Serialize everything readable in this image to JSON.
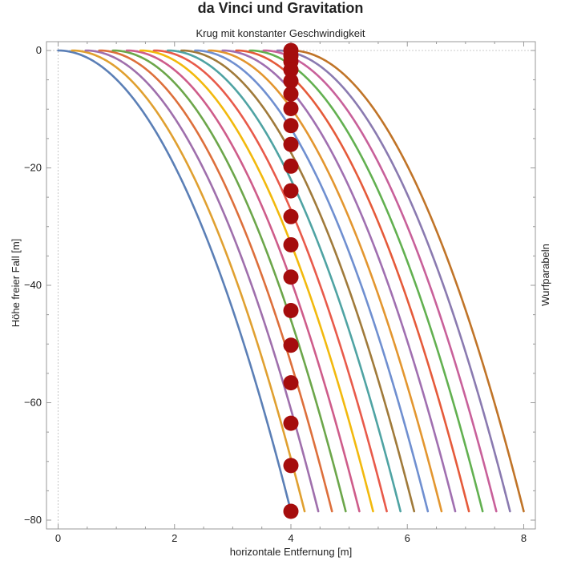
{
  "chart_data": {
    "type": "line",
    "title": "da Vinci und Gravitation",
    "subtitle": "Krug mit konstanter Geschwindigkeit",
    "xlabel": "horizontale Entfernung [m]",
    "ylabel": "Höhe freier Fall [m]",
    "right_label": "Wurfparabeln",
    "xlim": [
      -0.2,
      8.2
    ],
    "ylim": [
      -81.5,
      1.5
    ],
    "x_ticks": [
      0,
      2,
      4,
      6,
      8
    ],
    "x_tick_labels": [
      "0",
      "2",
      "4",
      "6",
      "8"
    ],
    "y_ticks": [
      0,
      -20,
      -40,
      -60,
      -80
    ],
    "y_tick_labels": [
      "0",
      "−20",
      "−40",
      "−60",
      "−80"
    ],
    "gridlines": "dashed at x=0 and y=0",
    "series_description_values": {
      "parabola_count": 18,
      "launch_offsets_x": [
        0,
        0.2353,
        0.4706,
        0.7059,
        0.9412,
        1.1765,
        1.4118,
        1.6471,
        1.8824,
        2.1176,
        2.3529,
        2.5882,
        2.8235,
        3.0588,
        3.2941,
        3.5294,
        3.7647,
        4.0
      ],
      "horizontal_span": 4.0,
      "final_height": -78.5,
      "colors": [
        "#5b7fb6",
        "#e0a030",
        "#9f6fac",
        "#dd6f3b",
        "#6ca64a",
        "#ce5c8a",
        "#f2b90d",
        "#e85a4a",
        "#4fa3a3",
        "#a07a3a",
        "#6f8fd0",
        "#e3962f",
        "#a06fb0",
        "#e55a3a",
        "#62b050",
        "#c8609a",
        "#8a7ab0",
        "#c07428"
      ]
    },
    "markers": {
      "x": 4.0,
      "y": [
        0,
        -0.9,
        -1.9,
        -3.3,
        -5.2,
        -7.4,
        -9.9,
        -12.8,
        -16.0,
        -19.7,
        -23.9,
        -28.3,
        -33.1,
        -38.6,
        -44.3,
        -50.2,
        -56.6,
        -63.5,
        -70.7,
        -78.5
      ],
      "color": "#a50d0d"
    }
  }
}
